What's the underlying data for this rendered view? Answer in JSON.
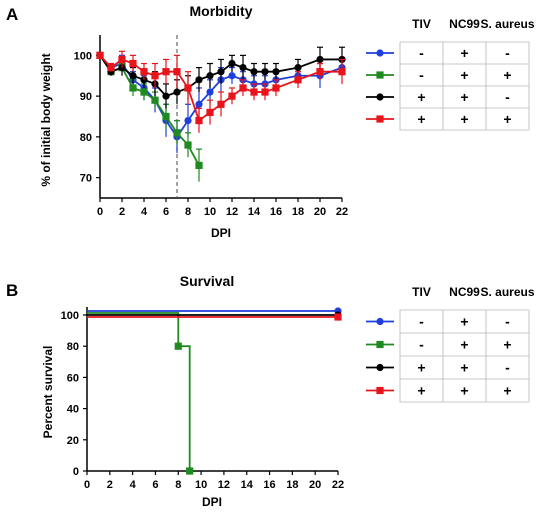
{
  "colors": {
    "blue": "#1f3fdc",
    "green": "#1f8a1f",
    "black": "#000000",
    "red": "#e8141b",
    "purple": "#7a2a8c"
  },
  "icons": {
    "marker_circle": "circle-marker",
    "marker_square": "square-marker"
  },
  "chart_data": [
    {
      "type": "line",
      "panel_label": "A",
      "title": "Morbidity",
      "xlabel": "DPI",
      "ylabel": "% of initial body weight",
      "xlim": [
        0,
        22
      ],
      "ylim": [
        65,
        105
      ],
      "xticks": [
        "0",
        "2",
        "4",
        "6",
        "8",
        "10",
        "12",
        "14",
        "16",
        "18",
        "20",
        "22"
      ],
      "yticks": [
        "70",
        "80",
        "90",
        "100"
      ],
      "grid": false,
      "vline_dashed_x": 7,
      "legend_position": "right",
      "series": [
        {
          "marker": "circle",
          "color": "blue",
          "x": [
            0,
            1,
            2,
            3,
            4,
            5,
            6,
            7,
            8,
            9,
            10,
            11,
            12,
            13,
            14,
            15,
            16,
            18,
            20,
            22
          ],
          "y": [
            100,
            97,
            98,
            94,
            92,
            89,
            84,
            80,
            84,
            88,
            91,
            94,
            95,
            94,
            93,
            93,
            94,
            95,
            95,
            97
          ],
          "err": [
            0,
            1,
            2,
            2,
            3,
            3,
            4,
            4,
            4,
            4,
            3,
            3,
            2,
            2,
            2,
            2,
            2,
            2,
            3,
            2
          ]
        },
        {
          "marker": "square",
          "color": "green",
          "x": [
            0,
            1,
            2,
            3,
            4,
            5,
            6,
            7,
            8,
            9
          ],
          "y": [
            100,
            96,
            97,
            92,
            91,
            89,
            85,
            81,
            78,
            73
          ],
          "err": [
            0,
            1,
            1,
            2,
            2,
            2,
            3,
            3,
            3,
            4
          ]
        },
        {
          "marker": "circle",
          "color": "black",
          "x": [
            0,
            1,
            2,
            3,
            4,
            5,
            6,
            7,
            8,
            9,
            10,
            11,
            12,
            13,
            14,
            15,
            16,
            18,
            20,
            22
          ],
          "y": [
            100,
            96,
            97,
            95,
            94,
            93,
            90,
            91,
            92,
            94,
            95,
            96,
            98,
            97,
            96,
            96,
            96,
            97,
            99,
            99
          ],
          "err": [
            0,
            1,
            2,
            2,
            2,
            3,
            3,
            3,
            3,
            3,
            3,
            3,
            2,
            3,
            2,
            2,
            2,
            2,
            3,
            3
          ]
        },
        {
          "marker": "square",
          "color": "red",
          "x": [
            0,
            1,
            2,
            3,
            4,
            5,
            6,
            7,
            8,
            9,
            10,
            11,
            12,
            13,
            14,
            15,
            16,
            18,
            20,
            22
          ],
          "y": [
            100,
            97,
            99,
            98,
            96,
            95,
            96,
            96,
            92,
            84,
            86,
            88,
            90,
            92,
            91,
            91,
            92,
            94,
            96,
            96
          ],
          "err": [
            0,
            1,
            2,
            2,
            2,
            3,
            3,
            4,
            4,
            3,
            3,
            3,
            2,
            2,
            2,
            2,
            2,
            2,
            2,
            3
          ]
        }
      ]
    },
    {
      "type": "line",
      "panel_label": "B",
      "title": "Survival",
      "xlabel": "DPI",
      "ylabel": "Percent survival",
      "xlim": [
        0,
        22
      ],
      "ylim": [
        0,
        100
      ],
      "xticks": [
        "0",
        "2",
        "4",
        "6",
        "8",
        "10",
        "12",
        "14",
        "16",
        "18",
        "20",
        "22"
      ],
      "yticks": [
        "0",
        "20",
        "40",
        "60",
        "80",
        "100"
      ],
      "grid": false,
      "legend_position": "right",
      "step": true,
      "series": [
        {
          "marker": "circle",
          "color": "blue",
          "x": [
            0,
            22
          ],
          "y": [
            100,
            100
          ]
        },
        {
          "marker": "square",
          "color": "green",
          "x": [
            0,
            8,
            9
          ],
          "y": [
            100,
            80,
            0
          ]
        },
        {
          "marker": "circle",
          "color": "black",
          "x": [
            0,
            22
          ],
          "y": [
            100,
            100
          ]
        },
        {
          "marker": "square",
          "color": "red",
          "x": [
            0,
            22
          ],
          "y": [
            100,
            100
          ]
        }
      ]
    }
  ],
  "legend_table": {
    "headers": [
      "TIV",
      "NC99",
      "S. aureus"
    ],
    "rows": [
      {
        "marker": "circle",
        "color": "blue",
        "cells": [
          "-",
          "+",
          "-"
        ]
      },
      {
        "marker": "square",
        "color": "green",
        "cells": [
          "-",
          "+",
          "+"
        ]
      },
      {
        "marker": "circle",
        "color": "black",
        "cells": [
          "+",
          "+",
          "-"
        ]
      },
      {
        "marker": "square",
        "color": "red",
        "cells": [
          "+",
          "+",
          "+"
        ]
      }
    ]
  }
}
